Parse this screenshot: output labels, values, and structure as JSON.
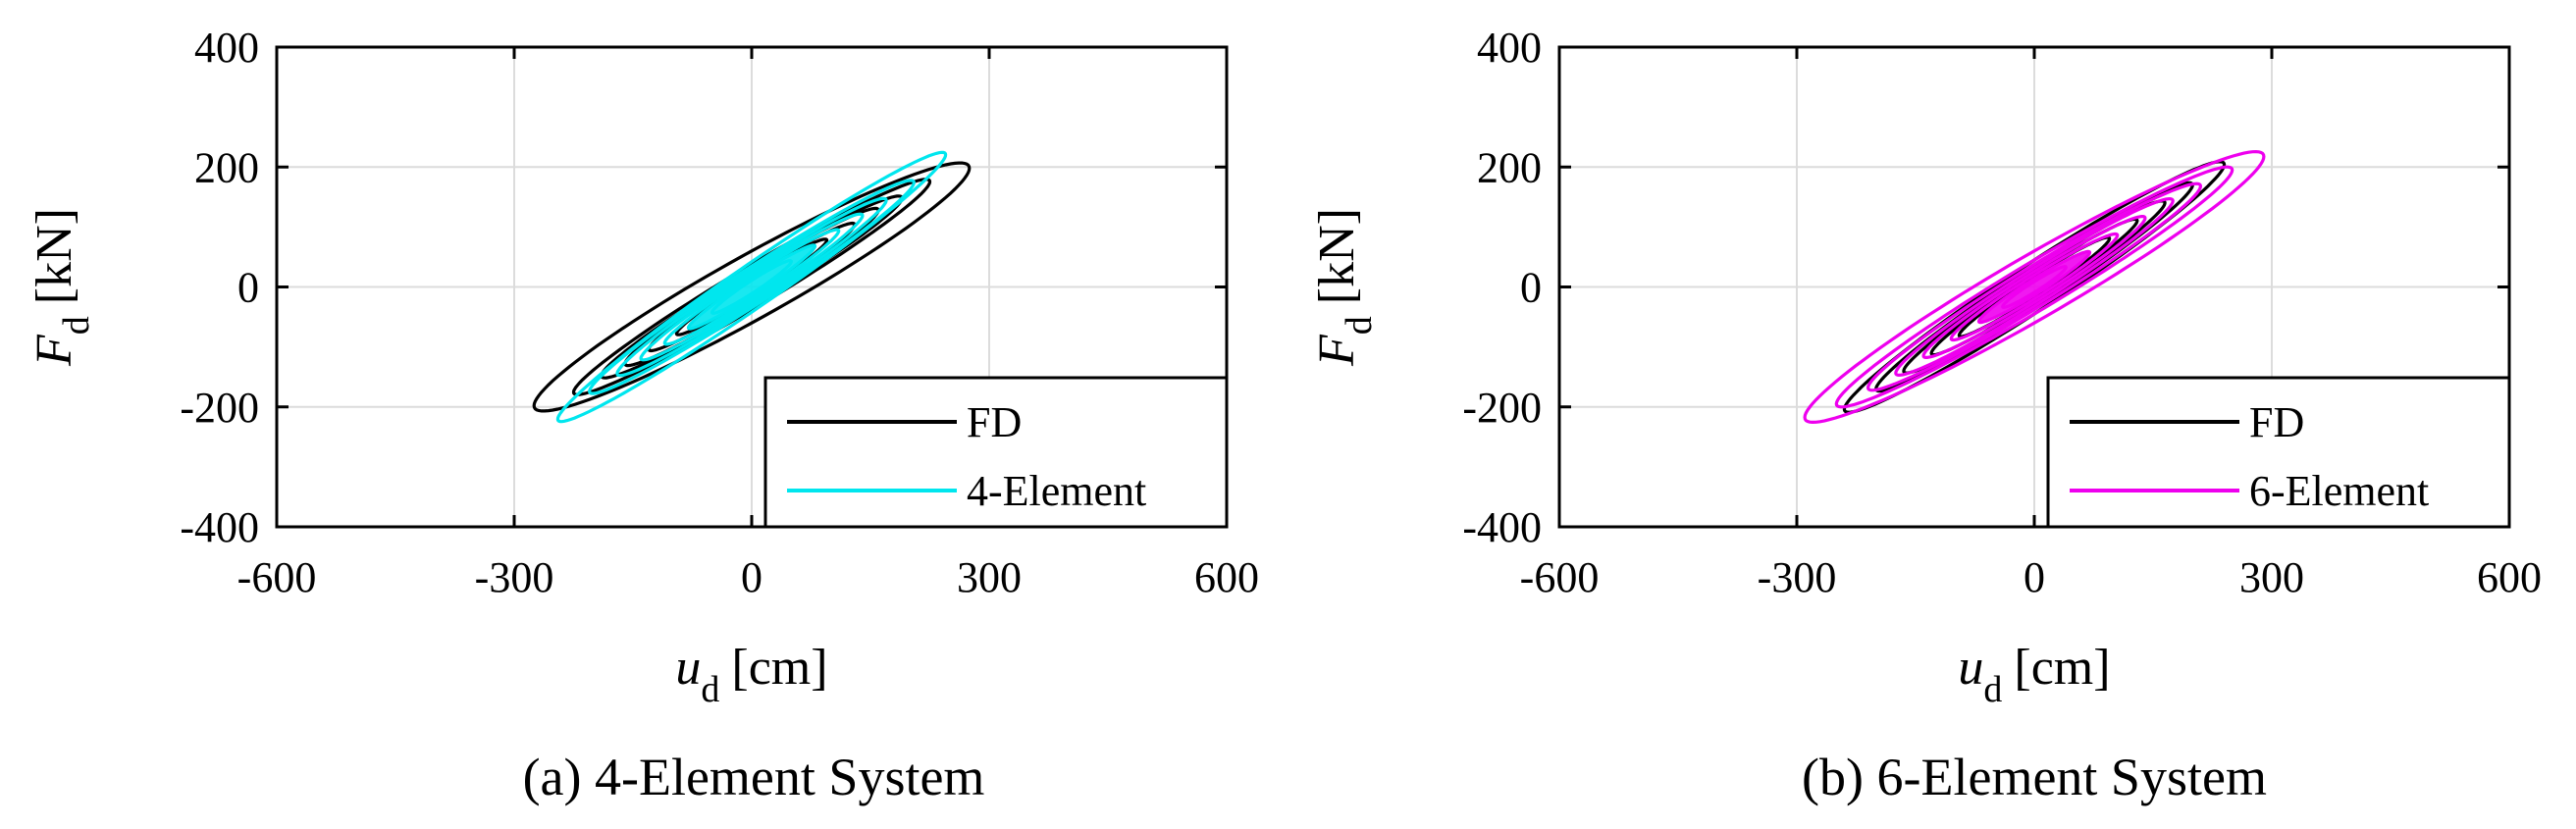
{
  "chart_data": [
    {
      "type": "line",
      "caption": "(a) 4-Element System",
      "xlabel": {
        "symbol": "u",
        "subscript": "d",
        "unit": "[cm]"
      },
      "ylabel": {
        "symbol": "F",
        "subscript": "d",
        "unit": "[kN]"
      },
      "xlim": [
        -600,
        600
      ],
      "ylim": [
        -400,
        400
      ],
      "xticks": [
        "-600",
        "-300",
        "0",
        "300",
        "600"
      ],
      "yticks": [
        "400",
        "200",
        "0",
        "-200",
        "-400"
      ],
      "grid": true,
      "legend_position": "bottom-right",
      "series": [
        {
          "name": "FD",
          "color": "#000000",
          "loops": [
            {
              "amplitude": 275,
              "slope": 0.72,
              "halfwidth": 60
            },
            {
              "amplitude": 225,
              "slope": 0.78,
              "halfwidth": 38
            },
            {
              "amplitude": 190,
              "slope": 0.78,
              "halfwidth": 32
            },
            {
              "amplitude": 160,
              "slope": 0.8,
              "halfwidth": 28
            },
            {
              "amplitude": 130,
              "slope": 0.8,
              "halfwidth": 22
            },
            {
              "amplitude": 95,
              "slope": 0.82,
              "halfwidth": 17
            }
          ]
        },
        {
          "name": "4-Element",
          "color": "#00e6ee",
          "loops": [
            {
              "amplitude": 245,
              "slope": 0.9,
              "halfwidth": 42
            },
            {
              "amplitude": 205,
              "slope": 0.85,
              "halfwidth": 35
            },
            {
              "amplitude": 170,
              "slope": 0.85,
              "halfwidth": 30
            },
            {
              "amplitude": 140,
              "slope": 0.85,
              "halfwidth": 25
            },
            {
              "amplitude": 110,
              "slope": 0.85,
              "halfwidth": 20
            },
            {
              "amplitude": 80,
              "slope": 0.85,
              "halfwidth": 15
            },
            {
              "amplitude": 50,
              "slope": 0.85,
              "halfwidth": 11
            }
          ]
        }
      ]
    },
    {
      "type": "line",
      "caption": "(b) 6-Element System",
      "xlabel": {
        "symbol": "u",
        "subscript": "d",
        "unit": "[cm]"
      },
      "ylabel": {
        "symbol": "F",
        "subscript": "d",
        "unit": "[kN]"
      },
      "xlim": [
        -600,
        600
      ],
      "ylim": [
        -400,
        400
      ],
      "xticks": [
        "-600",
        "-300",
        "0",
        "300",
        "600"
      ],
      "yticks": [
        "400",
        "200",
        "0",
        "-200",
        "-400"
      ],
      "grid": true,
      "legend_position": "bottom-right",
      "series": [
        {
          "name": "FD",
          "color": "#000000",
          "loops": [
            {
              "amplitude": 240,
              "slope": 0.85,
              "halfwidth": 45
            },
            {
              "amplitude": 200,
              "slope": 0.85,
              "halfwidth": 36
            },
            {
              "amplitude": 165,
              "slope": 0.85,
              "halfwidth": 30
            },
            {
              "amplitude": 130,
              "slope": 0.85,
              "halfwidth": 24
            },
            {
              "amplitude": 95,
              "slope": 0.85,
              "halfwidth": 18
            }
          ]
        },
        {
          "name": "6-Element",
          "color": "#ee00ee",
          "loops": [
            {
              "amplitude": 290,
              "slope": 0.75,
              "halfwidth": 60
            },
            {
              "amplitude": 250,
              "slope": 0.78,
              "halfwidth": 45
            },
            {
              "amplitude": 210,
              "slope": 0.8,
              "halfwidth": 38
            },
            {
              "amplitude": 175,
              "slope": 0.82,
              "halfwidth": 32
            },
            {
              "amplitude": 140,
              "slope": 0.82,
              "halfwidth": 26
            },
            {
              "amplitude": 105,
              "slope": 0.82,
              "halfwidth": 20
            },
            {
              "amplitude": 70,
              "slope": 0.82,
              "halfwidth": 14
            },
            {
              "amplitude": 40,
              "slope": 0.82,
              "halfwidth": 9
            }
          ]
        }
      ]
    }
  ]
}
